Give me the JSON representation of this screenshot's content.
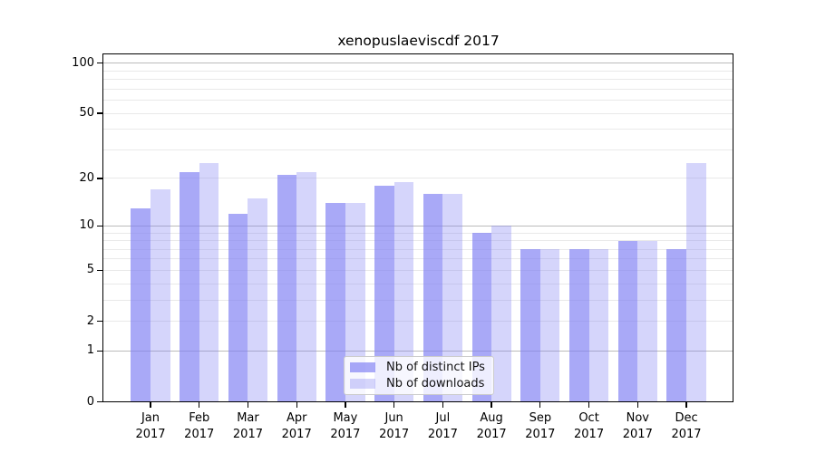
{
  "chart_data": {
    "type": "bar",
    "title": "xenopuslaeviscdf 2017",
    "categories": [
      "Jan",
      "Feb",
      "Mar",
      "Apr",
      "May",
      "Jun",
      "Jul",
      "Aug",
      "Sep",
      "Oct",
      "Nov",
      "Dec"
    ],
    "xtick_second_line": "2017",
    "series": [
      {
        "name": "Nb of distinct IPs",
        "color": "#7c7cf3",
        "alpha": 0.66,
        "values": [
          13,
          22,
          12,
          21,
          14,
          18,
          16,
          9,
          7,
          7,
          8,
          7
        ]
      },
      {
        "name": "Nb of downloads",
        "color": "#7c7cf3",
        "alpha": 0.32,
        "values": [
          17,
          25,
          15,
          22,
          14,
          19,
          16,
          10,
          7,
          7,
          8,
          25
        ]
      }
    ],
    "xlabel": "",
    "ylabel": "",
    "yscale": "log10(1+x)",
    "ylim": [
      0,
      115
    ],
    "ytick_labels": [
      "100",
      "50",
      "20",
      "10",
      "5",
      "2",
      "1",
      "0"
    ],
    "ytick_values": [
      100,
      50,
      20,
      10,
      5,
      2,
      1,
      0
    ],
    "grid": {
      "major_values": [
        1,
        10,
        100
      ],
      "minor_values": [
        2,
        3,
        4,
        5,
        6,
        7,
        8,
        9,
        20,
        30,
        40,
        50,
        60,
        70,
        80,
        90
      ],
      "major_color": "#bbbbbb",
      "minor_color": "#e9e9e9"
    },
    "legend": {
      "position": "bottom-center-inside",
      "labels": [
        "Nb of distinct IPs",
        "Nb of downloads"
      ]
    }
  }
}
